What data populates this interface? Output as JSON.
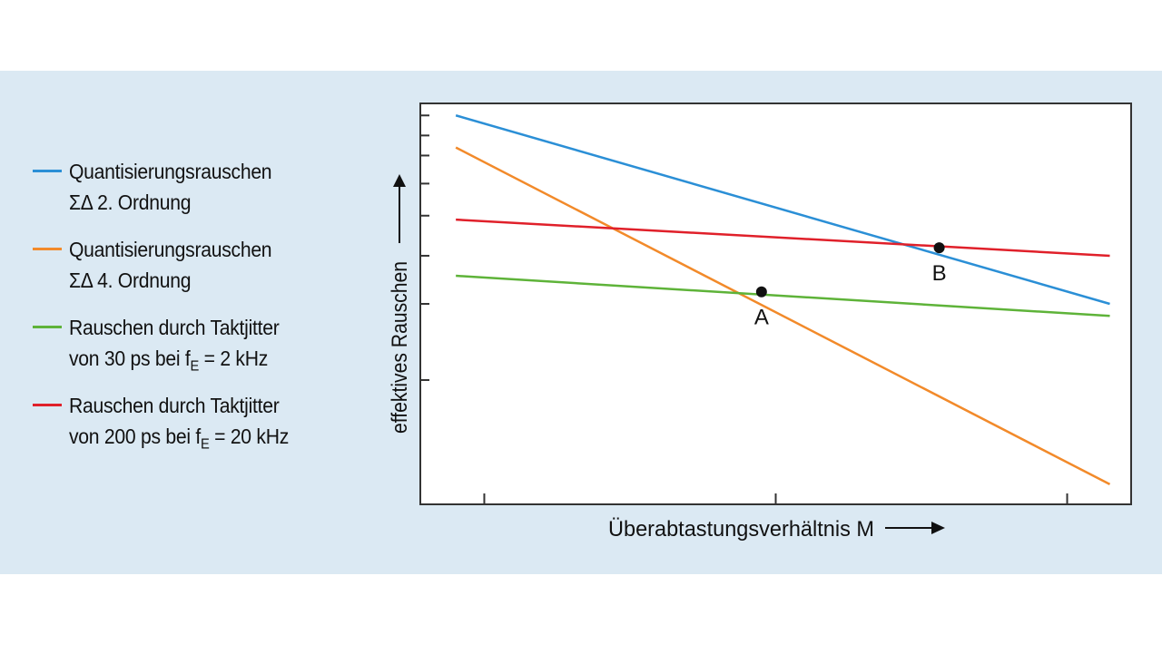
{
  "colors": {
    "background_band": "#dbe9f3",
    "blue": "#2b8fd6",
    "orange": "#f28a2a",
    "green": "#5eb339",
    "red": "#e0202a"
  },
  "legend": [
    {
      "color": "#2b8fd6",
      "line1": "Quantisierungsrauschen",
      "line2": "ΣΔ 2. Ordnung"
    },
    {
      "color": "#f28a2a",
      "line1": "Quantisierungsrauschen",
      "line2": "ΣΔ 4. Ordnung"
    },
    {
      "color": "#5eb339",
      "line1": "Rauschen durch Taktjitter",
      "line2_pre": "von 30 ps bei f",
      "line2_sub": "E",
      "line2_post": " = 2 kHz"
    },
    {
      "color": "#e0202a",
      "line1": "Rauschen durch Taktjitter",
      "line2_pre": "von 200 ps bei f",
      "line2_sub": "E",
      "line2_post": " = 20 kHz"
    }
  ],
  "chart_data": {
    "type": "line",
    "xlabel": "Überabtastungsverhältnis M",
    "ylabel": "effektives Rauschen",
    "xlim": [
      0,
      100
    ],
    "ylim": [
      0,
      100
    ],
    "x_ticks": [
      9,
      50,
      91
    ],
    "y_ticks": [
      97,
      92,
      87,
      80,
      72,
      62,
      50,
      31
    ],
    "grid": false,
    "series": [
      {
        "name": "Quantisierungsrauschen ΣΔ 2. Ordnung",
        "color": "#2b8fd6",
        "x": [
          5,
          97
        ],
        "y": [
          97,
          50
        ]
      },
      {
        "name": "Quantisierungsrauschen ΣΔ 4. Ordnung",
        "color": "#f28a2a",
        "x": [
          5,
          97
        ],
        "y": [
          89,
          5
        ]
      },
      {
        "name": "Rauschen durch Taktjitter von 30 ps bei fE = 2 kHz",
        "color": "#5eb339",
        "x": [
          5,
          97
        ],
        "y": [
          57,
          47
        ]
      },
      {
        "name": "Rauschen durch Taktjitter von 200 ps bei fE = 20 kHz",
        "color": "#e0202a",
        "x": [
          5,
          97
        ],
        "y": [
          71,
          62
        ]
      }
    ],
    "points": [
      {
        "label": "A",
        "x": 48,
        "y": 53
      },
      {
        "label": "B",
        "x": 73,
        "y": 64
      }
    ]
  }
}
